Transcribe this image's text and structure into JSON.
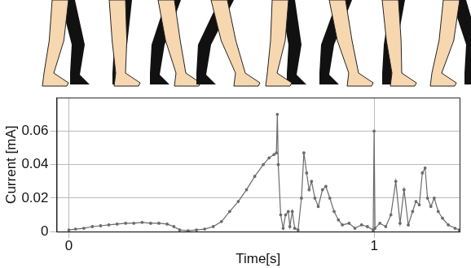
{
  "chart_data": {
    "type": "line",
    "x_label": "Time[s]",
    "y_label": "Current [mA]",
    "x": [
      0,
      0.022,
      0.049,
      0.077,
      0.104,
      0.131,
      0.158,
      0.186,
      0.213,
      0.24,
      0.268,
      0.295,
      0.322,
      0.344,
      0.363,
      0.391,
      0.418,
      0.445,
      0.473,
      0.5,
      0.527,
      0.555,
      0.582,
      0.609,
      0.637,
      0.656,
      0.672,
      0.68,
      0.683,
      0.686,
      0.694,
      0.702,
      0.71,
      0.719,
      0.724,
      0.732,
      0.74,
      0.751,
      0.762,
      0.77,
      0.779,
      0.787,
      0.795,
      0.806,
      0.817,
      0.831,
      0.842,
      0.855,
      0.869,
      0.883,
      0.896,
      0.918,
      0.937,
      0.959,
      0.978,
      0.997,
      1.0,
      1.003,
      1.019,
      1.038,
      1.055,
      1.071,
      1.085,
      1.098,
      1.112,
      1.126,
      1.137,
      1.148,
      1.158,
      1.167,
      1.175,
      1.186,
      1.197,
      1.21,
      1.224,
      1.243,
      1.265,
      1.279
    ],
    "values": [
      0.001,
      0.0015,
      0.002,
      0.003,
      0.0035,
      0.004,
      0.0045,
      0.005,
      0.005,
      0.0055,
      0.005,
      0.005,
      0.0045,
      0.003,
      0.001,
      0.0005,
      0.001,
      0.0015,
      0.003,
      0.006,
      0.012,
      0.018,
      0.025,
      0.033,
      0.04,
      0.044,
      0.046,
      0.047,
      0.07,
      0.04,
      0.01,
      0.002,
      0.01,
      0.012,
      0.003,
      0.012,
      0.002,
      0.001,
      0.02,
      0.047,
      0.035,
      0.025,
      0.03,
      0.02,
      0.015,
      0.025,
      0.027,
      0.02,
      0.012,
      0.007,
      0.004,
      0.005,
      0.002,
      0.004,
      0.003,
      0.001,
      0.06,
      0.002,
      0.005,
      0.003,
      0.01,
      0.03,
      0.005,
      0.025,
      0.004,
      0.012,
      0.018,
      0.016,
      0.035,
      0.038,
      0.02,
      0.015,
      0.02,
      0.012,
      0.008,
      0.004,
      0.002,
      0.001
    ],
    "color": "#6b6b6b",
    "marker": "dot",
    "xlim": [
      -0.04,
      1.28
    ],
    "ylim": [
      0,
      0.08
    ],
    "xticks": [
      0,
      1
    ],
    "yticks": [
      0,
      0.02,
      0.04,
      0.06
    ],
    "grid": true
  }
}
